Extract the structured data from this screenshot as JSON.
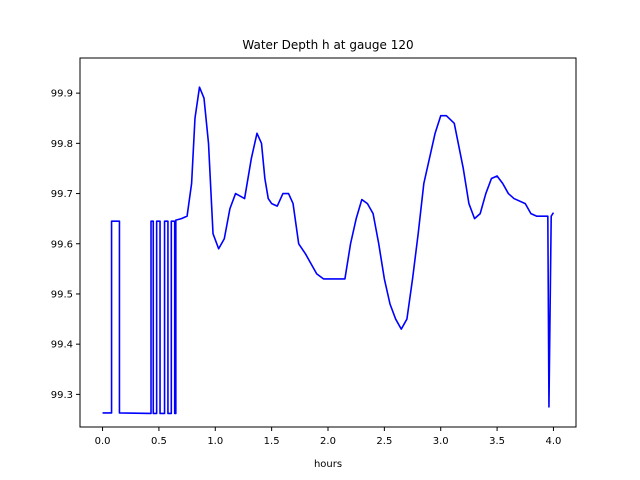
{
  "chart_data": {
    "type": "line",
    "title": "Water Depth h at gauge 120",
    "xlabel": "hours",
    "ylabel": "",
    "xlim": [
      -0.2,
      4.2
    ],
    "ylim": [
      99.235,
      99.97
    ],
    "grid": false,
    "xticks": [
      0.0,
      0.5,
      1.0,
      1.5,
      2.0,
      2.5,
      3.0,
      3.5,
      4.0
    ],
    "xtick_labels": [
      "0.0",
      "0.5",
      "1.0",
      "1.5",
      "2.0",
      "2.5",
      "3.0",
      "3.5",
      "4.0"
    ],
    "yticks": [
      99.3,
      99.4,
      99.5,
      99.6,
      99.7,
      99.8,
      99.9
    ],
    "ytick_labels": [
      "99.3",
      "99.4",
      "99.5",
      "99.6",
      "99.7",
      "99.8",
      "99.9"
    ],
    "series": [
      {
        "color": "#0000ff",
        "x": [
          0.0,
          0.08,
          0.08,
          0.15,
          0.15,
          0.43,
          0.43,
          0.45,
          0.45,
          0.48,
          0.48,
          0.51,
          0.51,
          0.55,
          0.55,
          0.58,
          0.58,
          0.61,
          0.61,
          0.64,
          0.64,
          0.65,
          0.65,
          0.7,
          0.75,
          0.79,
          0.82,
          0.86,
          0.9,
          0.94,
          0.98,
          1.03,
          1.08,
          1.13,
          1.18,
          1.22,
          1.26,
          1.32,
          1.37,
          1.41,
          1.44,
          1.47,
          1.5,
          1.55,
          1.6,
          1.65,
          1.69,
          1.74,
          1.8,
          1.85,
          1.9,
          1.96,
          2.05,
          2.15,
          2.2,
          2.25,
          2.3,
          2.35,
          2.4,
          2.45,
          2.5,
          2.55,
          2.6,
          2.65,
          2.7,
          2.75,
          2.8,
          2.85,
          2.95,
          3.0,
          3.05,
          3.12,
          3.2,
          3.25,
          3.3,
          3.35,
          3.4,
          3.45,
          3.5,
          3.55,
          3.6,
          3.65,
          3.75,
          3.8,
          3.85,
          3.9,
          3.95,
          3.96,
          3.96,
          3.98,
          3.98,
          4.0
        ],
        "y": [
          99.263,
          99.263,
          99.645,
          99.645,
          99.263,
          99.262,
          99.645,
          99.645,
          99.262,
          99.262,
          99.645,
          99.645,
          99.262,
          99.262,
          99.645,
          99.645,
          99.262,
          99.262,
          99.645,
          99.645,
          99.262,
          99.262,
          99.647,
          99.65,
          99.655,
          99.72,
          99.85,
          99.912,
          99.89,
          99.8,
          99.62,
          99.59,
          99.61,
          99.67,
          99.7,
          99.695,
          99.69,
          99.77,
          99.82,
          99.8,
          99.73,
          99.69,
          99.68,
          99.675,
          99.7,
          99.7,
          99.68,
          99.6,
          99.58,
          99.56,
          99.54,
          99.53,
          99.53,
          99.53,
          99.6,
          99.65,
          99.688,
          99.68,
          99.66,
          99.6,
          99.53,
          99.48,
          99.45,
          99.43,
          99.45,
          99.53,
          99.62,
          99.72,
          99.82,
          99.855,
          99.855,
          99.84,
          99.75,
          99.68,
          99.65,
          99.66,
          99.7,
          99.73,
          99.735,
          99.72,
          99.7,
          99.69,
          99.68,
          99.66,
          99.655,
          99.655,
          99.655,
          99.275,
          99.275,
          99.655,
          99.655,
          99.662
        ]
      }
    ]
  }
}
